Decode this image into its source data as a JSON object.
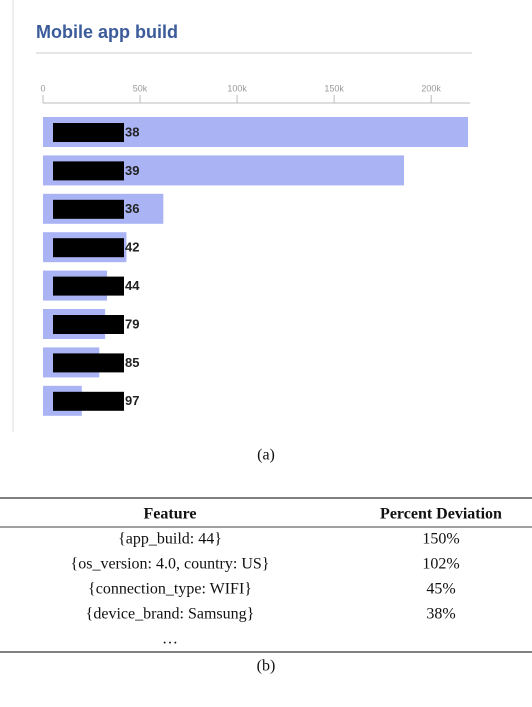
{
  "chart_data": {
    "type": "bar",
    "orientation": "horizontal",
    "title": "Mobile app build",
    "categories": [
      "38",
      "39",
      "36",
      "42",
      "44",
      "79",
      "85",
      "97"
    ],
    "values": [
      219000,
      186000,
      62000,
      43000,
      33000,
      32000,
      29000,
      20000
    ],
    "color": "#aab4f5",
    "xlim": [
      0,
      220000
    ],
    "xticks": [
      0,
      {
        "value": 50000,
        "label": "50k"
      },
      {
        "value": 100000,
        "label": "100k"
      },
      {
        "value": 150000,
        "label": "150k"
      },
      {
        "value": 200000,
        "label": "200k"
      }
    ],
    "caption": "(a)"
  },
  "table": {
    "header": [
      "Feature",
      "Percent Deviation"
    ],
    "rows": [
      [
        "{app_build: 44}",
        "150%"
      ],
      [
        "{os_version: 4.0, country: US}",
        "102%"
      ],
      [
        "{connection_type: WIFI}",
        "45%"
      ],
      [
        "{device_brand: Samsung}",
        "38%"
      ]
    ],
    "ellipsis": "…",
    "caption": "(b)"
  }
}
